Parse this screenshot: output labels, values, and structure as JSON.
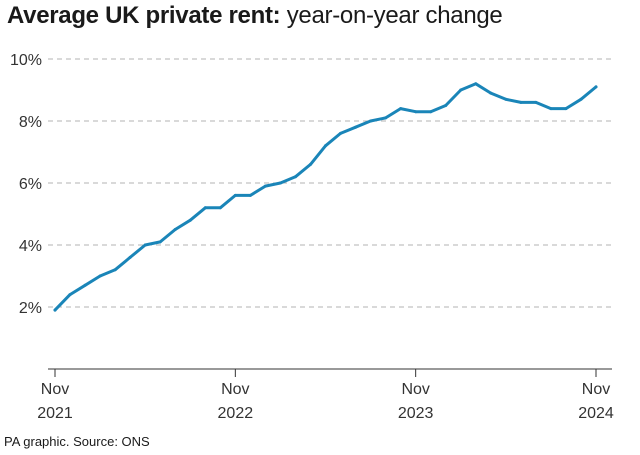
{
  "title_bold": "Average UK private rent:",
  "title_light": "year-on-year change",
  "source": "PA graphic. Source: ONS",
  "colors": {
    "line": "#1a85b8",
    "grid": "#b3b3b3",
    "axis": "#333333"
  },
  "chart_data": {
    "type": "line",
    "title": "Average UK private rent: year-on-year change",
    "xlabel": "",
    "ylabel": "",
    "ylim": [
      0,
      10
    ],
    "y_ticks": [
      {
        "value": 2,
        "label": "2%"
      },
      {
        "value": 4,
        "label": "4%"
      },
      {
        "value": 6,
        "label": "6%"
      },
      {
        "value": 8,
        "label": "8%"
      },
      {
        "value": 10,
        "label": "10%"
      }
    ],
    "x_ticks": [
      {
        "index": 0,
        "line1": "Nov",
        "line2": "2021"
      },
      {
        "index": 12,
        "line1": "Nov",
        "line2": "2022"
      },
      {
        "index": 24,
        "line1": "Nov",
        "line2": "2023"
      },
      {
        "index": 36,
        "line1": "Nov",
        "line2": "2024"
      }
    ],
    "x": [
      "Nov 2021",
      "Dec 2021",
      "Jan 2022",
      "Feb 2022",
      "Mar 2022",
      "Apr 2022",
      "May 2022",
      "Jun 2022",
      "Jul 2022",
      "Aug 2022",
      "Sep 2022",
      "Oct 2022",
      "Nov 2022",
      "Dec 2022",
      "Jan 2023",
      "Feb 2023",
      "Mar 2023",
      "Apr 2023",
      "May 2023",
      "Jun 2023",
      "Jul 2023",
      "Aug 2023",
      "Sep 2023",
      "Oct 2023",
      "Nov 2023",
      "Dec 2023",
      "Jan 2024",
      "Feb 2024",
      "Mar 2024",
      "Apr 2024",
      "May 2024",
      "Jun 2024",
      "Jul 2024",
      "Aug 2024",
      "Sep 2024",
      "Oct 2024",
      "Nov 2024"
    ],
    "series": [
      {
        "name": "Year-on-year change (%)",
        "values": [
          1.9,
          2.4,
          2.7,
          3.0,
          3.2,
          3.6,
          4.0,
          4.1,
          4.5,
          4.8,
          5.2,
          5.2,
          5.6,
          5.6,
          5.9,
          6.0,
          6.2,
          6.6,
          7.2,
          7.6,
          7.8,
          8.0,
          8.1,
          8.4,
          8.3,
          8.3,
          8.5,
          9.0,
          9.2,
          8.9,
          8.7,
          8.6,
          8.6,
          8.4,
          8.4,
          8.7,
          9.1
        ]
      }
    ]
  }
}
